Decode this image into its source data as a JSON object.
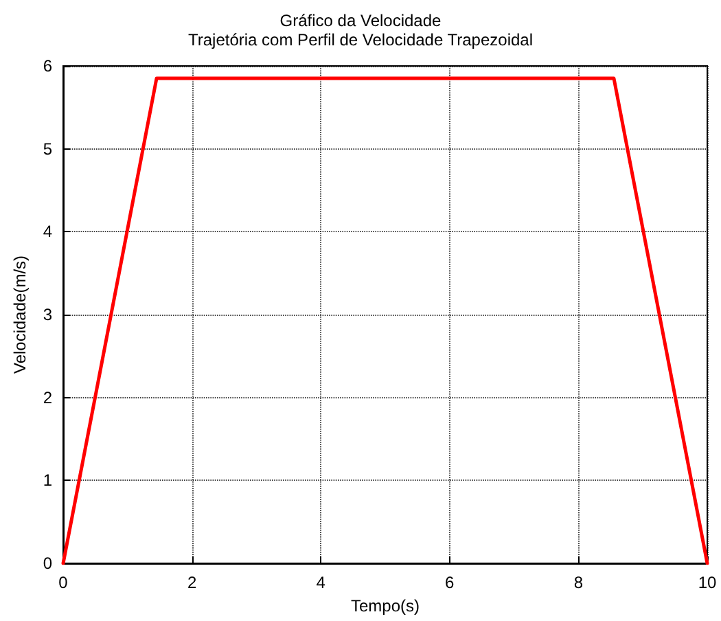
{
  "chart_data": {
    "type": "line",
    "title": "Gráfico da Velocidade",
    "subtitle": "Trajetória com Perfil de Velocidade Trapezoidal",
    "xlabel": "Tempo(s)",
    "ylabel": "Velocidade(m/s)",
    "x": [
      0,
      1.45,
      8.55,
      10
    ],
    "series": [
      {
        "color": "#ff0000",
        "values": [
          0,
          5.85,
          5.85,
          0
        ]
      }
    ],
    "xlim": [
      0,
      10
    ],
    "xticks": [
      0,
      2,
      4,
      6,
      8,
      10
    ],
    "ylim": [
      0,
      6
    ],
    "yticks": [
      0,
      1,
      2,
      3,
      4,
      5,
      6
    ],
    "grid": true,
    "line_style": "solid",
    "marker": "none"
  }
}
